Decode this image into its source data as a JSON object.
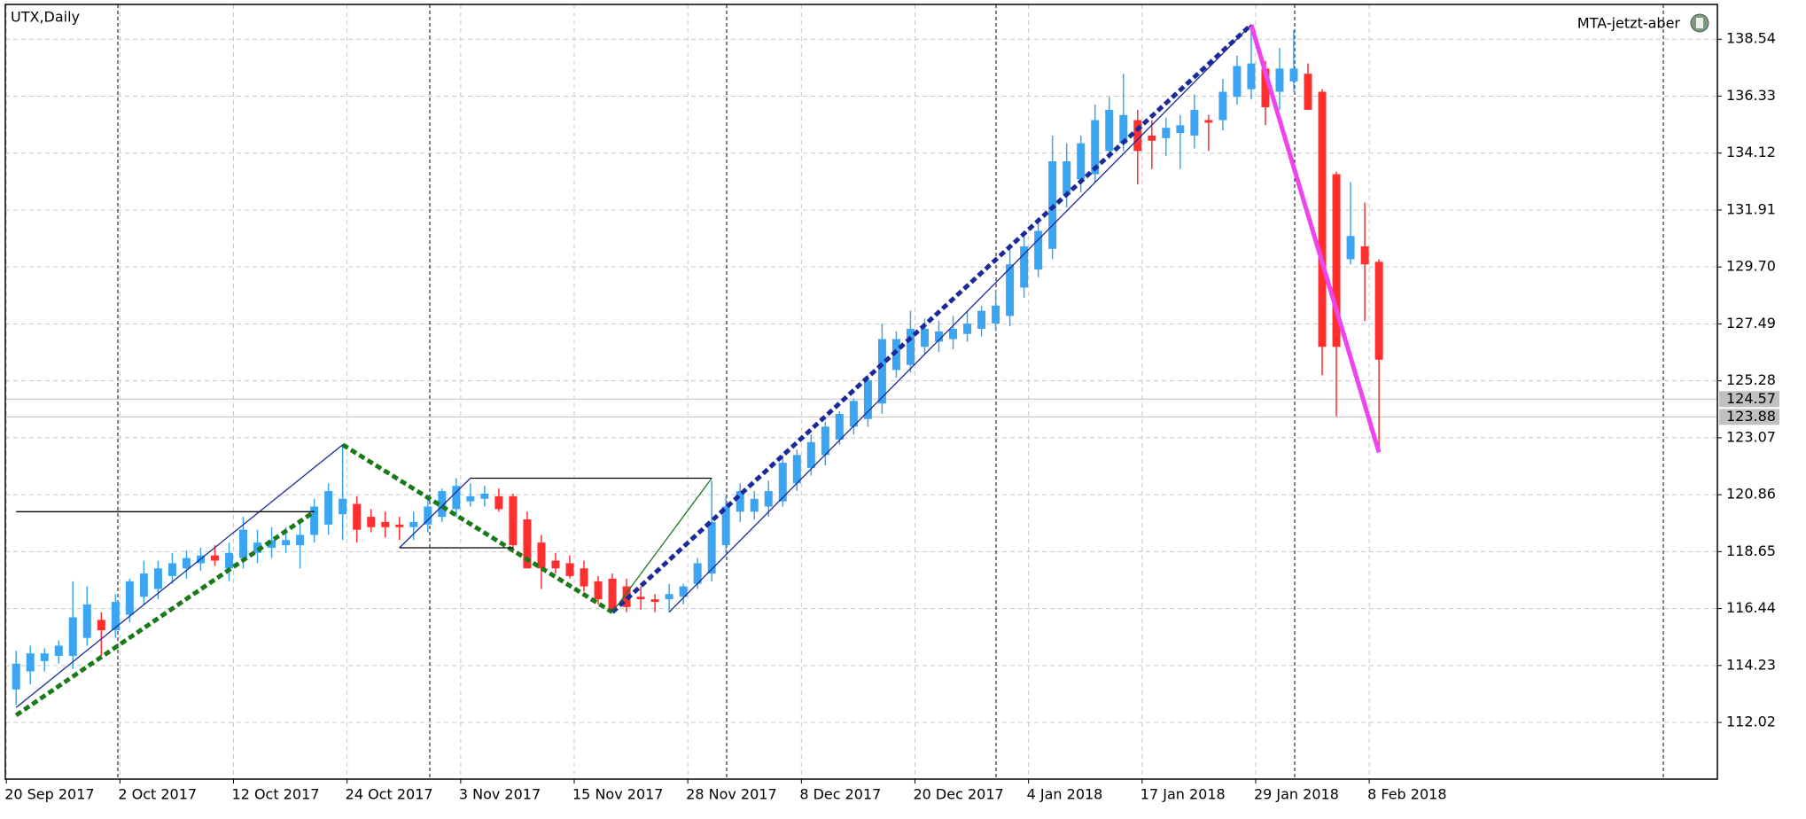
{
  "chart_data": {
    "type": "candlestick",
    "title": "UTX,Daily",
    "indicator_label": "MTA-jetzt-aber",
    "up_color": "#3ca5f2",
    "down_color": "#ff2f2f",
    "grid": true,
    "ylim": [
      109.82,
      139.89
    ],
    "yticks": [
      112.02,
      114.23,
      116.44,
      118.65,
      120.86,
      123.07,
      125.28,
      127.49,
      {
        "value": 129.7,
        "label": "129.70"
      },
      131.91,
      134.12,
      136.33,
      138.54
    ],
    "price_lines": [
      124.57,
      123.88
    ],
    "categories": [
      "20 Sep 2017",
      null,
      null,
      null,
      null,
      null,
      null,
      null,
      "2 Oct 2017",
      null,
      null,
      null,
      null,
      null,
      null,
      null,
      "12 Oct 2017",
      null,
      null,
      null,
      null,
      null,
      null,
      null,
      "24 Oct 2017",
      null,
      null,
      null,
      null,
      null,
      null,
      null,
      "3 Nov 2017",
      null,
      null,
      null,
      null,
      null,
      null,
      null,
      "15 Nov 2017",
      null,
      null,
      null,
      null,
      null,
      null,
      null,
      "28 Nov 2017",
      null,
      null,
      null,
      null,
      null,
      null,
      null,
      "8 Dec 2017",
      null,
      null,
      null,
      null,
      null,
      null,
      null,
      "20 Dec 2017",
      null,
      null,
      null,
      null,
      null,
      null,
      null,
      "4 Jan 2018",
      null,
      null,
      null,
      null,
      null,
      null,
      null,
      "17 Jan 2018",
      null,
      null,
      null,
      null,
      null,
      null,
      null,
      "29 Jan 2018",
      null,
      null,
      null,
      null,
      null,
      null,
      null,
      "8 Feb 2018"
    ],
    "candles": [
      [
        113.3,
        114.8,
        112.7,
        114.3
      ],
      [
        114.0,
        115.0,
        113.5,
        114.7
      ],
      [
        114.4,
        114.9,
        114.0,
        114.7
      ],
      [
        114.6,
        115.2,
        114.3,
        115.0
      ],
      [
        114.6,
        117.5,
        114.1,
        116.1
      ],
      [
        115.3,
        117.3,
        115.0,
        116.6
      ],
      [
        116.0,
        116.3,
        114.6,
        115.6
      ],
      [
        115.6,
        117.0,
        115.3,
        116.7
      ],
      [
        116.2,
        117.6,
        115.9,
        117.5
      ],
      [
        116.9,
        118.3,
        116.6,
        117.8
      ],
      [
        117.2,
        118.3,
        116.8,
        118.0
      ],
      [
        117.7,
        118.6,
        117.4,
        118.2
      ],
      [
        118.0,
        118.7,
        117.6,
        118.4
      ],
      [
        118.2,
        118.8,
        117.9,
        118.5
      ],
      [
        118.5,
        118.9,
        118.1,
        118.3
      ],
      [
        118.0,
        119.0,
        117.5,
        118.6
      ],
      [
        118.4,
        120.0,
        118.0,
        119.5
      ],
      [
        118.6,
        119.5,
        118.2,
        119.0
      ],
      [
        118.8,
        119.6,
        118.4,
        119.1
      ],
      [
        118.9,
        119.6,
        118.6,
        119.1
      ],
      [
        118.9,
        119.8,
        118.0,
        119.3
      ],
      [
        119.3,
        120.7,
        119.0,
        120.4
      ],
      [
        119.7,
        121.3,
        119.3,
        121.0
      ],
      [
        120.1,
        122.8,
        119.1,
        120.7
      ],
      [
        120.5,
        120.8,
        119.0,
        119.5
      ],
      [
        120.0,
        120.3,
        119.4,
        119.6
      ],
      [
        119.8,
        120.2,
        119.2,
        119.6
      ],
      [
        119.7,
        120.0,
        119.1,
        119.6
      ],
      [
        119.6,
        120.2,
        119.1,
        119.8
      ],
      [
        119.7,
        120.7,
        119.4,
        120.4
      ],
      [
        120.0,
        121.1,
        119.8,
        121.0
      ],
      [
        120.3,
        121.5,
        120.0,
        121.2
      ],
      [
        120.6,
        121.3,
        120.4,
        120.8
      ],
      [
        120.7,
        121.2,
        120.4,
        120.9
      ],
      [
        120.8,
        121.1,
        120.2,
        120.3
      ],
      [
        120.8,
        120.9,
        118.6,
        118.9
      ],
      [
        119.9,
        120.2,
        118.0,
        118.0
      ],
      [
        119.0,
        119.3,
        117.2,
        118.0
      ],
      [
        118.3,
        118.6,
        117.8,
        118.0
      ],
      [
        118.2,
        118.5,
        117.6,
        117.7
      ],
      [
        118.0,
        118.3,
        117.1,
        117.3
      ],
      [
        117.5,
        117.7,
        116.6,
        116.8
      ],
      [
        117.6,
        117.8,
        116.3,
        116.4
      ],
      [
        117.3,
        117.6,
        116.3,
        116.5
      ],
      [
        116.9,
        117.3,
        116.4,
        116.8
      ],
      [
        116.8,
        117.0,
        116.3,
        116.7
      ],
      [
        116.8,
        117.4,
        116.3,
        117.0
      ],
      [
        116.9,
        117.4,
        116.6,
        117.3
      ],
      [
        117.4,
        118.4,
        117.2,
        118.2
      ],
      [
        117.8,
        121.4,
        117.5,
        119.8
      ],
      [
        118.9,
        120.8,
        118.6,
        120.4
      ],
      [
        120.2,
        121.3,
        119.8,
        121.0
      ],
      [
        120.2,
        121.0,
        119.9,
        120.7
      ],
      [
        120.4,
        121.4,
        120.0,
        121.0
      ],
      [
        120.6,
        122.4,
        120.4,
        122.1
      ],
      [
        121.3,
        122.6,
        121.0,
        122.4
      ],
      [
        121.9,
        123.2,
        121.6,
        122.9
      ],
      [
        122.4,
        123.7,
        122.0,
        123.5
      ],
      [
        123.0,
        124.1,
        122.8,
        124.0
      ],
      [
        123.5,
        124.6,
        123.2,
        124.5
      ],
      [
        123.8,
        125.5,
        123.5,
        125.3
      ],
      [
        124.4,
        127.5,
        124.0,
        126.9
      ],
      [
        125.7,
        127.2,
        125.4,
        126.9
      ],
      [
        125.9,
        128.0,
        125.6,
        127.3
      ],
      [
        126.6,
        127.7,
        126.3,
        127.3
      ],
      [
        126.8,
        127.6,
        126.4,
        127.2
      ],
      [
        126.9,
        127.8,
        126.5,
        127.3
      ],
      [
        127.1,
        128.0,
        126.8,
        127.5
      ],
      [
        127.3,
        128.2,
        127.0,
        128.0
      ],
      [
        127.5,
        128.8,
        127.2,
        128.2
      ],
      [
        127.8,
        130.4,
        127.4,
        129.8
      ],
      [
        128.9,
        131.0,
        128.5,
        130.5
      ],
      [
        129.6,
        131.6,
        129.3,
        131.1
      ],
      [
        130.4,
        134.8,
        130.0,
        133.8
      ],
      [
        132.5,
        134.5,
        132.0,
        133.8
      ],
      [
        133.1,
        134.8,
        132.6,
        134.5
      ],
      [
        133.3,
        136.0,
        133.0,
        135.4
      ],
      [
        134.2,
        136.3,
        133.9,
        135.8
      ],
      [
        134.5,
        137.2,
        134.2,
        135.6
      ],
      [
        135.4,
        135.8,
        132.9,
        134.2
      ],
      [
        134.8,
        135.4,
        133.5,
        134.6
      ],
      [
        134.7,
        135.5,
        134.0,
        135.1
      ],
      [
        134.9,
        135.6,
        133.5,
        135.2
      ],
      [
        134.8,
        136.4,
        134.3,
        135.8
      ],
      [
        135.4,
        135.6,
        134.2,
        135.3
      ],
      [
        135.4,
        137.0,
        135.0,
        136.5
      ],
      [
        136.3,
        137.9,
        136.0,
        137.5
      ],
      [
        136.6,
        139.0,
        136.2,
        137.6
      ],
      [
        137.4,
        137.7,
        135.2,
        135.9
      ],
      [
        136.5,
        138.2,
        135.8,
        137.4
      ],
      [
        136.9,
        138.9,
        136.5,
        137.4
      ],
      [
        137.2,
        137.6,
        135.8,
        135.8
      ],
      [
        136.5,
        136.6,
        125.5,
        126.6
      ],
      [
        133.3,
        133.4,
        123.9,
        126.6
      ],
      [
        130.0,
        133.0,
        129.8,
        130.9
      ],
      [
        130.5,
        132.2,
        127.6,
        129.8
      ],
      [
        129.9,
        130.0,
        122.6,
        126.1
      ]
    ],
    "overlays": [
      {
        "color": "#1a7a1a",
        "style": "dashed",
        "points": [
          [
            0,
            112.3
          ],
          [
            21,
            120.2
          ]
        ]
      },
      {
        "color": "#1a7a1a",
        "style": "dashed",
        "points": [
          [
            23,
            122.8
          ],
          [
            42,
            116.3
          ]
        ]
      },
      {
        "color": "#1a2a9a",
        "style": "dashed",
        "points": [
          [
            42,
            116.3
          ],
          [
            87,
            139.1
          ]
        ]
      },
      {
        "color": "#ee44ee",
        "style": "solid",
        "points": [
          [
            87,
            139.1
          ],
          [
            96,
            122.5
          ]
        ]
      },
      {
        "color": "#1a2a9a",
        "style": "thin",
        "points": [
          [
            0,
            112.6
          ],
          [
            23,
            122.8
          ]
        ]
      },
      {
        "color": "#1a2a9a",
        "style": "thin",
        "points": [
          [
            27,
            118.8
          ],
          [
            32,
            121.5
          ]
        ]
      },
      {
        "color": "#1a2a9a",
        "style": "thin",
        "points": [
          [
            46,
            116.3
          ],
          [
            87,
            139.1
          ]
        ]
      },
      {
        "color": "#1a7a1a",
        "style": "thin",
        "points": [
          [
            42,
            116.3
          ],
          [
            49,
            121.5
          ]
        ]
      },
      {
        "color": "#000000",
        "style": "thin",
        "points": [
          [
            0,
            120.2
          ],
          [
            21,
            120.2
          ]
        ]
      },
      {
        "color": "#000000",
        "style": "thin",
        "points": [
          [
            27,
            118.8
          ],
          [
            35,
            118.8
          ]
        ]
      },
      {
        "color": "#000000",
        "style": "thin",
        "points": [
          [
            32,
            121.5
          ],
          [
            49,
            121.5
          ]
        ]
      }
    ]
  }
}
